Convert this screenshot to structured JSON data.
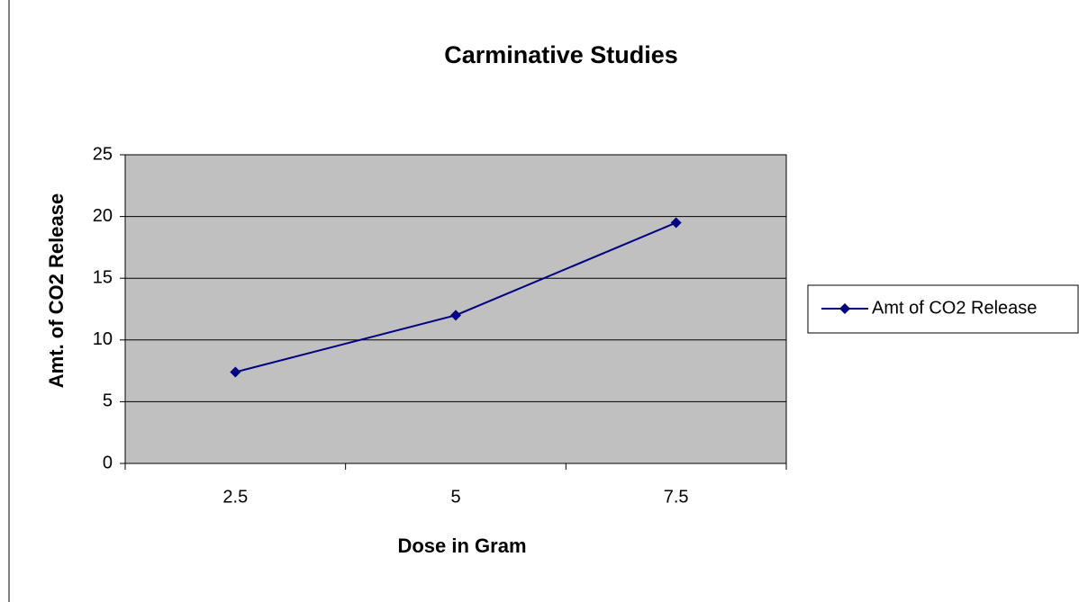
{
  "chart_data": {
    "type": "line",
    "title": "Carminative Studies",
    "x_label": "Dose in Gram",
    "y_label": "Amt. of CO2 Release",
    "categories": [
      "2.5",
      "5",
      "7.5"
    ],
    "series": [
      {
        "name": "Amt of CO2 Release",
        "color": "#000080",
        "values": [
          7.4,
          12,
          19.5
        ]
      }
    ],
    "ylim": [
      0,
      25
    ],
    "yticks": [
      0,
      5,
      10,
      15,
      20,
      25
    ],
    "grid": true,
    "plot_background": "#c0c0c0",
    "legend": "right"
  }
}
